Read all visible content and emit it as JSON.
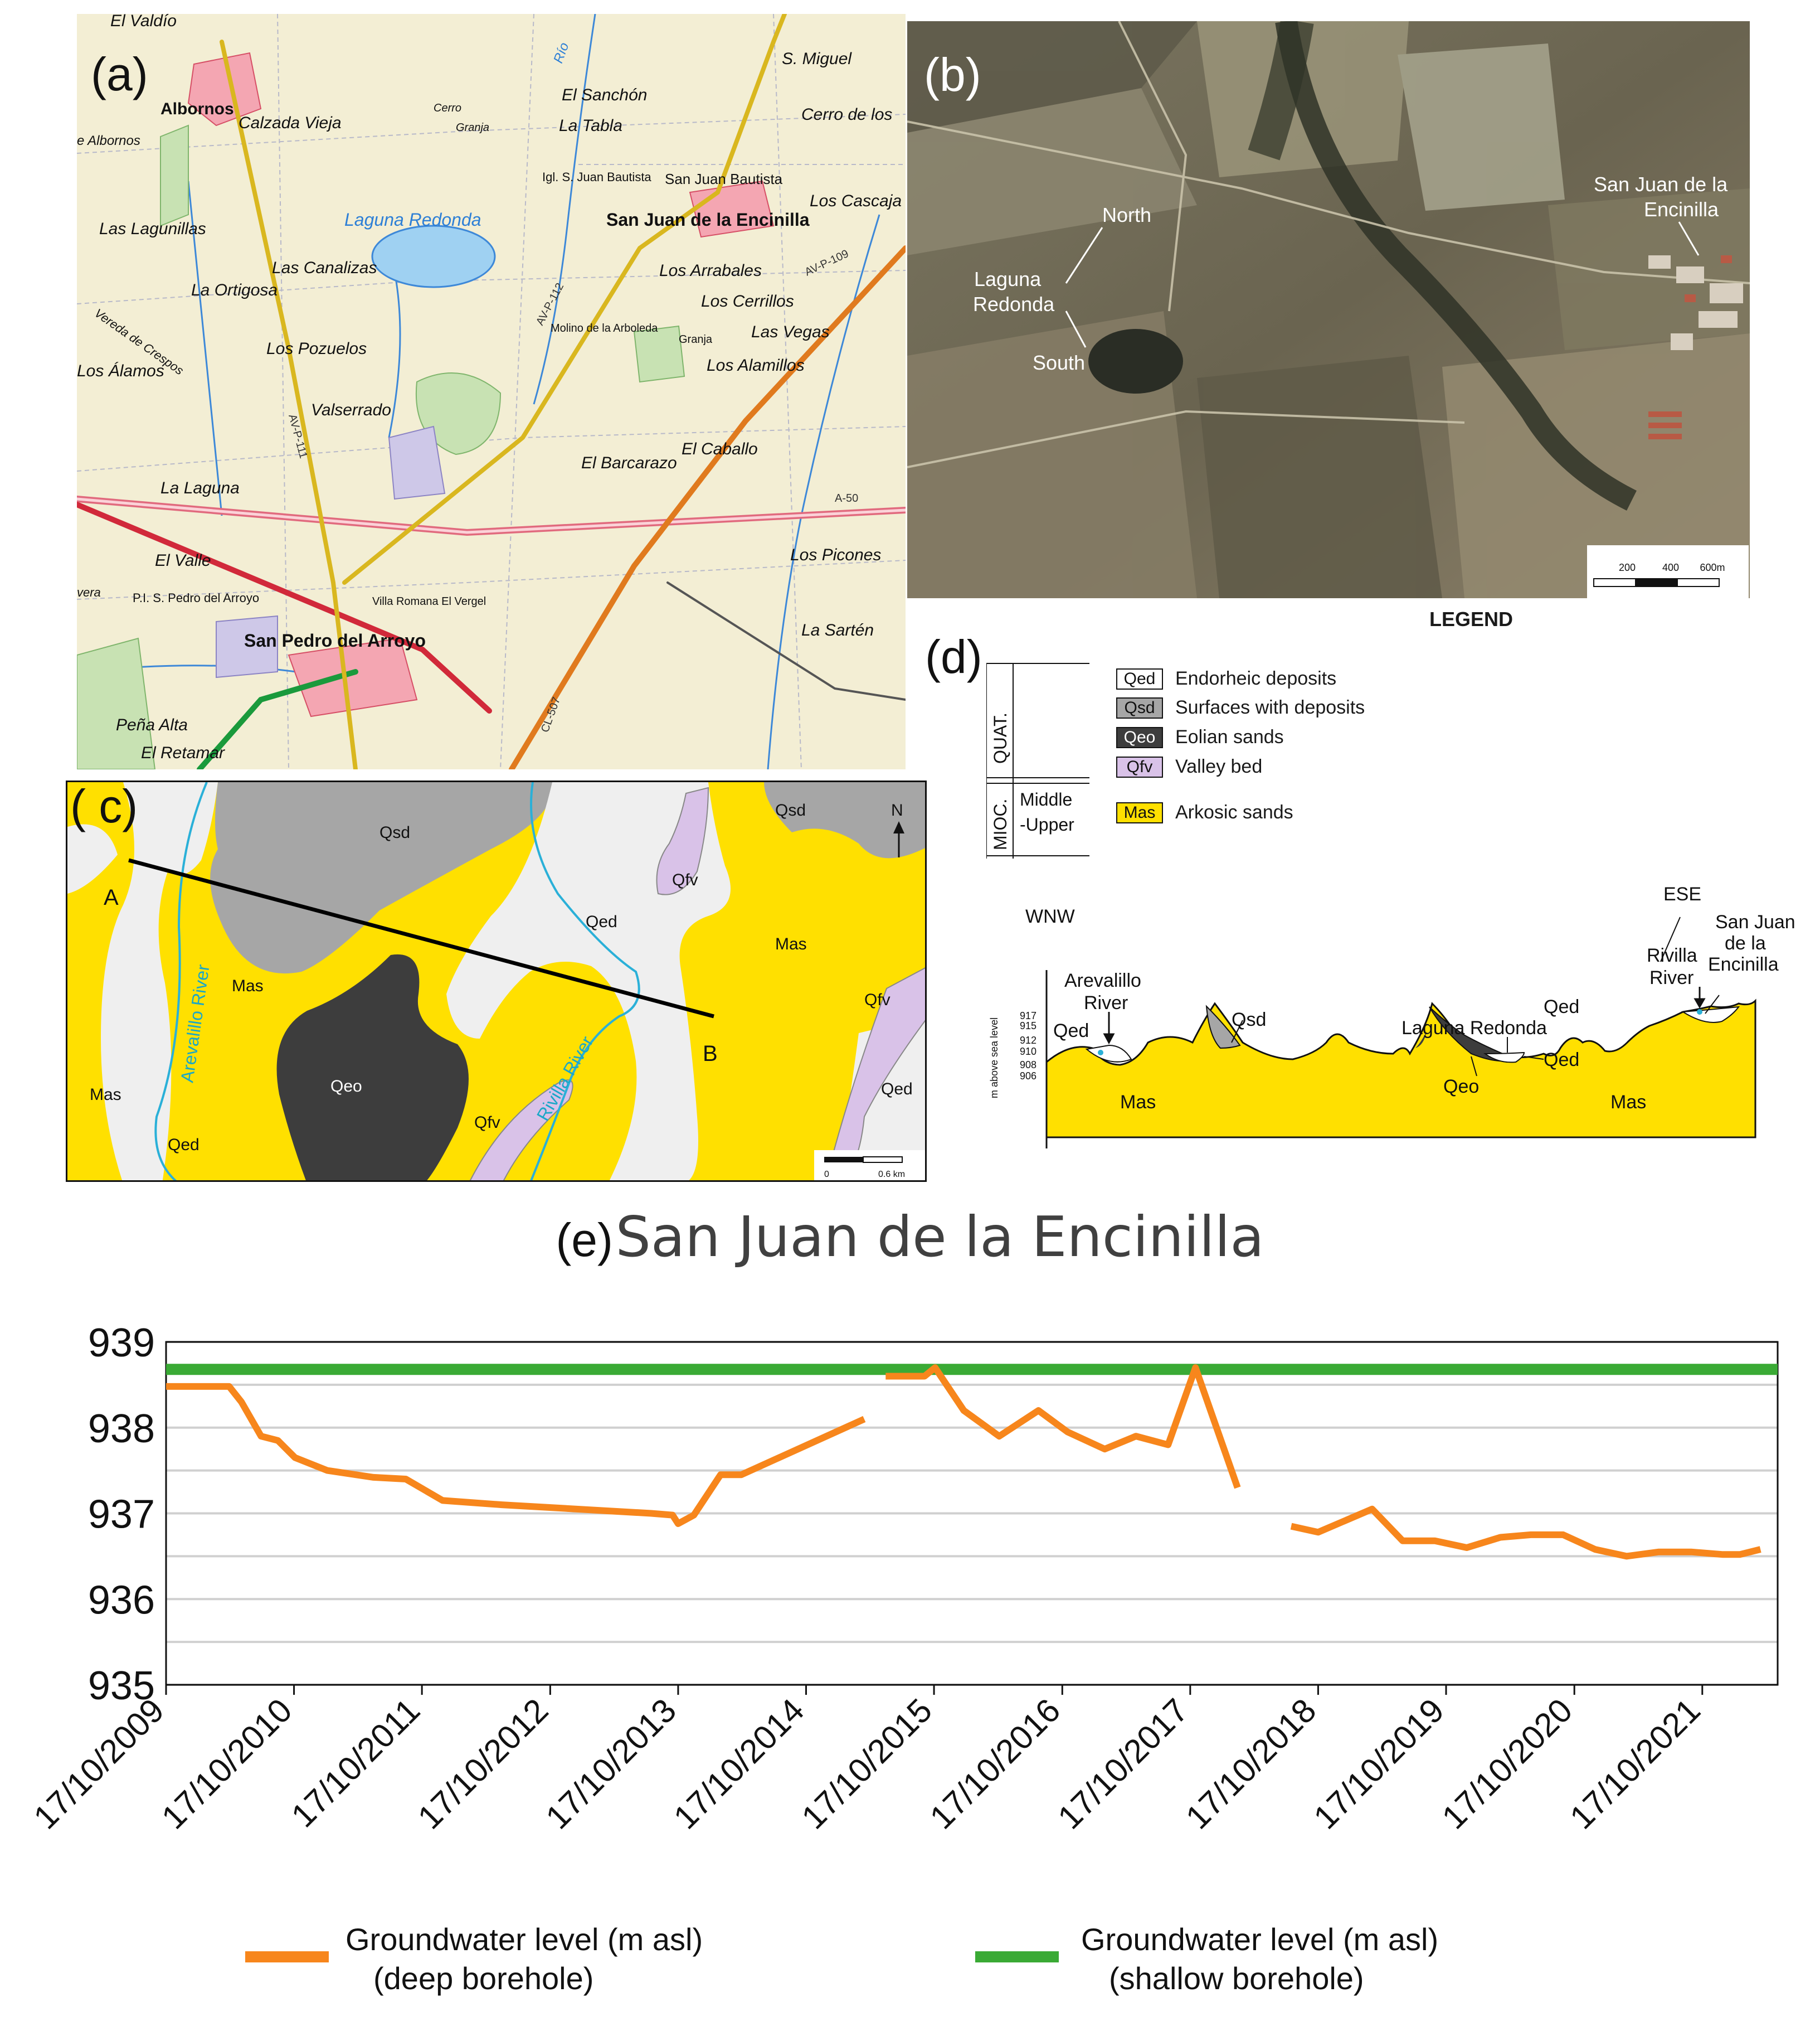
{
  "panel_labels": {
    "a": "(a)",
    "b": "(b)",
    "c": "( c)",
    "d": "(d)",
    "e": "(e)"
  },
  "panel_a": {
    "places": [
      {
        "key": "el-valdio",
        "text": "El Valdío"
      },
      {
        "key": "albornos",
        "text": "Albornos"
      },
      {
        "key": "de-albornos",
        "text": "e Albornos"
      },
      {
        "key": "calzada-vieja",
        "text": "Calzada Vieja"
      },
      {
        "key": "cerro",
        "text": "Cerro"
      },
      {
        "key": "granja",
        "text": "Granja"
      },
      {
        "key": "el-sanchon",
        "text": "El Sanchón"
      },
      {
        "key": "la-tabla",
        "text": "La Tabla"
      },
      {
        "key": "s-miguel",
        "text": "S. Miguel"
      },
      {
        "key": "cerro-de-los",
        "text": "Cerro de los"
      },
      {
        "key": "igl-san-juan",
        "text": "Igl. S. Juan Bautista"
      },
      {
        "key": "san-juan-bautista",
        "text": "San Juan Bautista"
      },
      {
        "key": "los-cascaja",
        "text": "Los Cascaja"
      },
      {
        "key": "laguna-redonda",
        "text": "Laguna Redonda"
      },
      {
        "key": "san-juan-encinilla",
        "text": "San Juan de la Encinilla"
      },
      {
        "key": "las-lagunillas",
        "text": "Las Lagunillas"
      },
      {
        "key": "vereda",
        "text": "Vereda de Crespos"
      },
      {
        "key": "las-canalizas",
        "text": "Las Canalizas"
      },
      {
        "key": "la-ortigosa",
        "text": "La Ortigosa"
      },
      {
        "key": "los-arrabales",
        "text": "Los Arrabales"
      },
      {
        "key": "los-cerrillos",
        "text": "Los Cerrillos"
      },
      {
        "key": "los-pozuelos",
        "text": "Los Pozuelos"
      },
      {
        "key": "molino",
        "text": "Molino de la Arboleda"
      },
      {
        "key": "las-vegas",
        "text": "Las Vegas"
      },
      {
        "key": "granja2",
        "text": "Granja"
      },
      {
        "key": "los-alamos",
        "text": "Los Álamos"
      },
      {
        "key": "los-alamillos",
        "text": "Los Alamillos"
      },
      {
        "key": "valserrado",
        "text": "Valserrado"
      },
      {
        "key": "el-barcarazo",
        "text": "El Barcarazo"
      },
      {
        "key": "el-caballo",
        "text": "El Caballo"
      },
      {
        "key": "la-laguna",
        "text": "La Laguna"
      },
      {
        "key": "el-valle",
        "text": "El Valle"
      },
      {
        "key": "los-picones",
        "text": "Los Picones"
      },
      {
        "key": "pis",
        "text": "P.I. S. Pedro del Arroyo"
      },
      {
        "key": "villa-romana",
        "text": "Villa Romana El Vergel"
      },
      {
        "key": "san-pedro",
        "text": "San Pedro del Arroyo"
      },
      {
        "key": "la-sarten",
        "text": "La Sartén"
      },
      {
        "key": "pena-alta",
        "text": "Peña Alta"
      },
      {
        "key": "el-retamar",
        "text": "El Retamar"
      },
      {
        "key": "vera",
        "text": "vera"
      },
      {
        "key": "rio",
        "text": "Río"
      }
    ],
    "roads": [
      "AV-P-112",
      "AV-P-111",
      "AV-P-109",
      "CL-507",
      "A-50"
    ]
  },
  "panel_b": {
    "labels": {
      "north": "North",
      "laguna": "Laguna",
      "redonda": "Redonda",
      "south": "South",
      "sj1": "San Juan de la",
      "sj2": "Encinilla"
    },
    "scale": {
      "t1": "200",
      "t2": "400",
      "t3": "600m"
    }
  },
  "panel_c": {
    "units": {
      "qsd1": "Qsd",
      "qsd2": "Qsd",
      "qed1": "Qed",
      "qed2": "Qed",
      "qed3": "Qed",
      "qfv1": "Qfv",
      "qfv2": "Qfv",
      "qfv3": "Qfv",
      "mas1": "Mas",
      "mas2": "Mas",
      "mas3": "Mas",
      "qeo": "Qeo"
    },
    "points": {
      "a": "A",
      "b": "B",
      "n": "N"
    },
    "rivers": {
      "arevalillo": "Arevalillo River",
      "rivilla": "Rivilla River"
    },
    "scale": {
      "zero": "0",
      "km": "0.6 km"
    }
  },
  "legend": {
    "title": "LEGEND",
    "eras": {
      "quat": "QUAT.",
      "mioc": "MIOC.",
      "age1": "Middle",
      "age2": "-Upper"
    },
    "items": [
      {
        "code": "Qed",
        "text": "Endorheic deposits",
        "color": "#ffffff",
        "text_color": "#111111"
      },
      {
        "code": "Qsd",
        "text": "Surfaces with deposits",
        "color": "#a6a6a6",
        "text_color": "#111111"
      },
      {
        "code": "Qeo",
        "text": "Eolian sands",
        "color": "#3d3d3d",
        "text_color": "#ffffff"
      },
      {
        "code": "Qfv",
        "text": "Valley bed",
        "color": "#d9c2e8",
        "text_color": "#111111"
      },
      {
        "code": "Mas",
        "text": "Arkosic sands",
        "color": "#ffe000",
        "text_color": "#111111"
      }
    ]
  },
  "section": {
    "wnw": "WNW",
    "ese": "ESE",
    "yaxis": "m above sea level",
    "ticks": [
      "917",
      "915",
      "912",
      "910",
      "908",
      "906"
    ],
    "labels": {
      "arev1": "Arevalillo",
      "arev2": "River",
      "qed_l": "Qed",
      "qsd": "Qsd",
      "laguna": "Laguna Redonda",
      "qed_m": "Qed",
      "qeo": "Qeo",
      "mas_l": "Mas",
      "mas_r": "Mas",
      "riv1": "Rivilla",
      "riv2": "River",
      "qed_r": "Qed",
      "sj1": "San Juan",
      "sj2": "de la",
      "sj3": "Encinilla"
    }
  },
  "chart_data": {
    "type": "line",
    "title": "San Juan de la Encinilla",
    "ylim": [
      935,
      939
    ],
    "yticks": [
      935,
      936,
      937,
      938,
      939
    ],
    "xlim": [
      "2009-10-17",
      "2022-05-20"
    ],
    "xtick_labels": [
      "17/10/2009",
      "17/10/2010",
      "17/10/2011",
      "17/10/2012",
      "17/10/2013",
      "17/10/2014",
      "17/10/2015",
      "17/10/2016",
      "17/10/2017",
      "17/10/2018",
      "17/10/2019",
      "17/10/2020",
      "17/10/2021"
    ],
    "xtick_dates": [
      "2009-10-17",
      "2010-10-17",
      "2011-10-17",
      "2012-10-17",
      "2013-10-17",
      "2014-10-17",
      "2015-10-17",
      "2016-10-17",
      "2017-10-17",
      "2018-10-17",
      "2019-10-17",
      "2020-10-17",
      "2021-10-17"
    ],
    "grid": true,
    "legend_position": "bottom",
    "series": [
      {
        "name": "Groundwater level (m asl) (deep borehole)",
        "color": "#f7861c",
        "segments": [
          [
            [
              "2009-10-17",
              938.48
            ],
            [
              "2010-04-15",
              938.48
            ],
            [
              "2010-05-20",
              938.3
            ],
            [
              "2010-07-15",
              937.9
            ],
            [
              "2010-09-01",
              937.85
            ],
            [
              "2010-10-20",
              937.65
            ],
            [
              "2011-01-20",
              937.5
            ],
            [
              "2011-06-01",
              937.42
            ],
            [
              "2011-09-01",
              937.4
            ],
            [
              "2011-12-15",
              937.15
            ],
            [
              "2012-06-01",
              937.1
            ],
            [
              "2013-08-01",
              937.0
            ],
            [
              "2013-10-01",
              936.98
            ],
            [
              "2013-10-17",
              936.88
            ],
            [
              "2013-12-01",
              936.98
            ],
            [
              "2014-02-15",
              937.45
            ],
            [
              "2014-04-15",
              937.45
            ],
            [
              "2015-04-01",
              938.1
            ]
          ],
          [
            [
              "2015-06-01",
              938.6
            ],
            [
              "2015-09-20",
              938.6
            ],
            [
              "2015-10-20",
              938.7
            ],
            [
              "2016-01-10",
              938.2
            ],
            [
              "2016-04-20",
              937.9
            ],
            [
              "2016-08-10",
              938.2
            ],
            [
              "2016-11-01",
              937.95
            ],
            [
              "2017-02-15",
              937.75
            ],
            [
              "2017-05-15",
              937.9
            ],
            [
              "2017-08-15",
              937.8
            ],
            [
              "2017-11-01",
              938.7
            ],
            [
              "2018-03-01",
              937.3
            ]
          ],
          [
            [
              "2018-08-01",
              936.85
            ],
            [
              "2018-10-17",
              936.78
            ],
            [
              "2019-03-20",
              937.05
            ],
            [
              "2019-06-15",
              936.68
            ],
            [
              "2019-09-15",
              936.68
            ],
            [
              "2019-12-15",
              936.6
            ],
            [
              "2020-03-20",
              936.72
            ],
            [
              "2020-06-15",
              936.75
            ],
            [
              "2020-09-15",
              936.75
            ],
            [
              "2020-12-15",
              936.58
            ],
            [
              "2021-03-15",
              936.5
            ],
            [
              "2021-06-15",
              936.55
            ],
            [
              "2021-09-15",
              936.55
            ],
            [
              "2021-12-15",
              936.52
            ],
            [
              "2022-02-01",
              936.52
            ],
            [
              "2022-04-01",
              936.58
            ]
          ]
        ]
      },
      {
        "name": "Groundwater level (m asl) (shallow borehole)",
        "color": "#3aaa35",
        "segments": [
          [
            [
              "2009-10-17",
              938.68
            ],
            [
              "2022-05-20",
              938.68
            ]
          ]
        ]
      }
    ],
    "legend": [
      {
        "line1": "Groundwater level (m asl)",
        "line2": "(deep borehole)",
        "color": "#f7861c"
      },
      {
        "line1": "Groundwater level (m asl)",
        "line2": "(shallow borehole)",
        "color": "#3aaa35"
      }
    ]
  }
}
